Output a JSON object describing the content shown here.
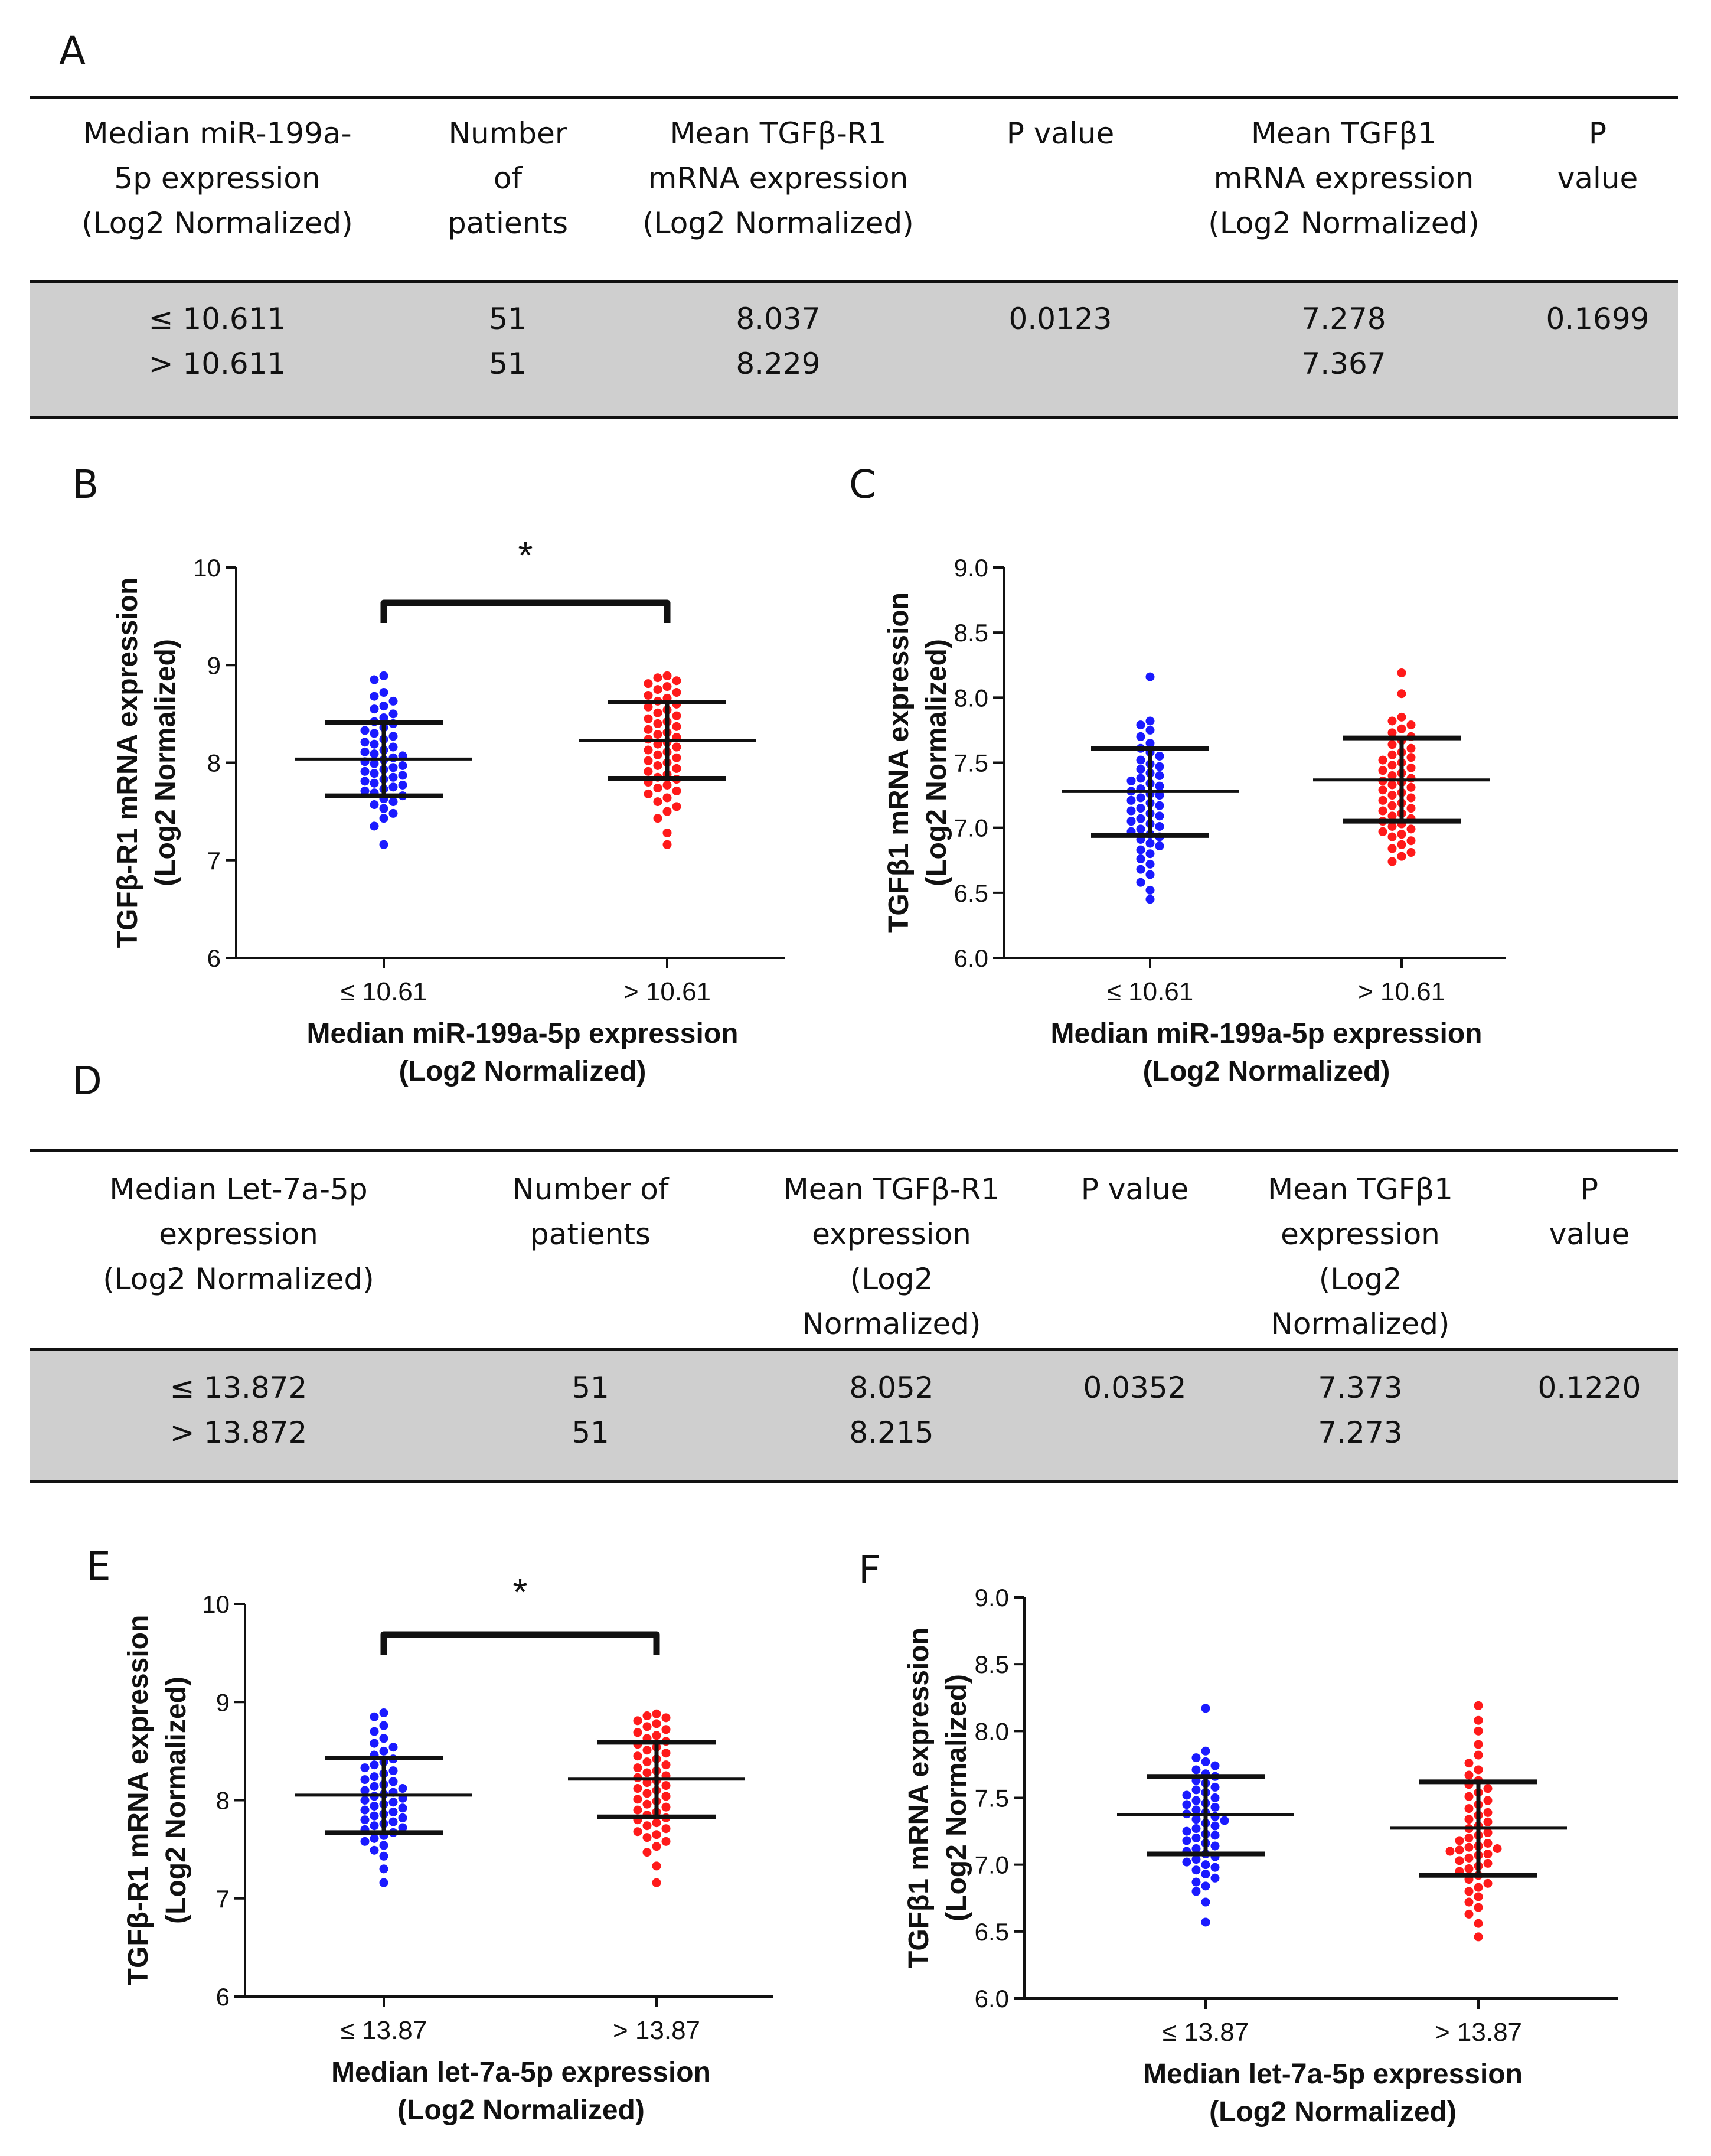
{
  "panel_labels": {
    "a": "A",
    "b": "B",
    "c": "C",
    "d": "D",
    "e": "E",
    "f": "F"
  },
  "table_a": {
    "headers": [
      "Median miR-199a-\n5p expression\n(Log2 Normalized)",
      "Number\nof\npatients",
      "Mean TGFβ-R1\nmRNA expression\n(Log2 Normalized)",
      "P value",
      "Mean TGFβ1\nmRNA expression\n(Log2 Normalized)",
      "P value"
    ],
    "rows": [
      [
        "≤ 10.611",
        "51",
        "8.037",
        "0.0123",
        "7.278",
        "0.1699"
      ],
      [
        "> 10.611",
        "51",
        "8.229",
        "",
        "7.367",
        ""
      ]
    ]
  },
  "table_d": {
    "headers": [
      "Median  Let-7a-5p\nexpression\n(Log2 Normalized)",
      "Number of\npatients",
      "Mean TGFβ-R1\nexpression\n(Log2\nNormalized)",
      "P value",
      "Mean TGFβ1\nexpression\n(Log2\nNormalized)",
      "P value"
    ],
    "rows": [
      [
        "≤ 13.872",
        "51",
        "8.052",
        "0.0352",
        "7.373",
        "0.1220"
      ],
      [
        "> 13.872",
        "51",
        "8.215",
        "",
        "7.273",
        ""
      ]
    ]
  },
  "colors": {
    "group1": "#1a1aff",
    "group2": "#ff1a1a",
    "axis": "#111111",
    "band": "#cfcfcf"
  },
  "chart_data": [
    {
      "id": "B",
      "type": "scatter",
      "ylabel": [
        "TGFβ-R1 mRNA expression",
        "(Log2 Normalized)"
      ],
      "xlabel": [
        "Median miR-199a-5p expression",
        "(Log2 Normalized)"
      ],
      "categories": [
        "≤ 10.61",
        "> 10.61"
      ],
      "ylim": [
        6,
        10
      ],
      "yticks": [
        6,
        7,
        8,
        9,
        10
      ],
      "ytick_labels": [
        "6",
        "7",
        "8",
        "9",
        "10"
      ],
      "series": [
        {
          "name": "≤ 10.61",
          "mean": 8.037,
          "sd_low": 7.66,
          "sd_high": 8.41,
          "values": [
            8.89,
            8.85,
            8.72,
            8.68,
            8.63,
            8.58,
            8.55,
            8.5,
            8.46,
            8.42,
            8.4,
            8.36,
            8.33,
            8.3,
            8.27,
            8.24,
            8.21,
            8.19,
            8.16,
            8.13,
            8.11,
            8.09,
            8.07,
            8.05,
            8.03,
            8.01,
            7.99,
            7.97,
            7.95,
            7.93,
            7.91,
            7.89,
            7.87,
            7.85,
            7.83,
            7.81,
            7.79,
            7.77,
            7.75,
            7.73,
            7.71,
            7.69,
            7.66,
            7.63,
            7.6,
            7.57,
            7.53,
            7.48,
            7.43,
            7.35,
            7.16
          ]
        },
        {
          "name": "> 10.61",
          "mean": 8.229,
          "sd_low": 7.84,
          "sd_high": 8.62,
          "values": [
            8.89,
            8.87,
            8.84,
            8.81,
            8.78,
            8.75,
            8.72,
            8.69,
            8.66,
            8.63,
            8.6,
            8.57,
            8.54,
            8.51,
            8.48,
            8.45,
            8.42,
            8.4,
            8.37,
            8.34,
            8.31,
            8.29,
            8.26,
            8.24,
            8.21,
            8.19,
            8.16,
            8.13,
            8.11,
            8.08,
            8.05,
            8.02,
            8.0,
            7.97,
            7.94,
            7.91,
            7.88,
            7.85,
            7.83,
            7.8,
            7.77,
            7.74,
            7.71,
            7.68,
            7.64,
            7.6,
            7.55,
            7.5,
            7.43,
            7.28,
            7.16
          ]
        }
      ],
      "annotation": "*"
    },
    {
      "id": "C",
      "type": "scatter",
      "ylabel": [
        "TGFβ1 mRNA expression",
        "(Log2 Normalized)"
      ],
      "xlabel": [
        "Median miR-199a-5p expression",
        "(Log2 Normalized)"
      ],
      "categories": [
        "≤ 10.61",
        "> 10.61"
      ],
      "ylim": [
        6.0,
        9.0
      ],
      "yticks": [
        6.0,
        6.5,
        7.0,
        7.5,
        8.0,
        8.5,
        9.0
      ],
      "ytick_labels": [
        "6.0",
        "6.5",
        "7.0",
        "7.5",
        "8.0",
        "8.5",
        "9.0"
      ],
      "series": [
        {
          "name": "≤ 10.61",
          "mean": 7.278,
          "sd_low": 6.94,
          "sd_high": 7.61,
          "values": [
            8.16,
            7.82,
            7.79,
            7.75,
            7.7,
            7.65,
            7.61,
            7.58,
            7.55,
            7.52,
            7.49,
            7.47,
            7.45,
            7.42,
            7.4,
            7.38,
            7.36,
            7.34,
            7.32,
            7.3,
            7.28,
            7.26,
            7.25,
            7.23,
            7.21,
            7.19,
            7.17,
            7.15,
            7.13,
            7.11,
            7.09,
            7.07,
            7.05,
            7.03,
            7.01,
            6.99,
            6.97,
            6.95,
            6.93,
            6.91,
            6.88,
            6.86,
            6.83,
            6.8,
            6.76,
            6.72,
            6.68,
            6.64,
            6.58,
            6.52,
            6.45
          ]
        },
        {
          "name": "> 10.61",
          "mean": 7.367,
          "sd_low": 7.05,
          "sd_high": 7.69,
          "values": [
            8.19,
            8.03,
            7.85,
            7.82,
            7.79,
            7.76,
            7.73,
            7.7,
            7.67,
            7.64,
            7.61,
            7.58,
            7.56,
            7.54,
            7.52,
            7.5,
            7.48,
            7.46,
            7.44,
            7.42,
            7.4,
            7.38,
            7.36,
            7.35,
            7.33,
            7.31,
            7.29,
            7.27,
            7.25,
            7.23,
            7.21,
            7.19,
            7.17,
            7.15,
            7.13,
            7.11,
            7.09,
            7.07,
            7.05,
            7.03,
            7.01,
            6.99,
            6.97,
            6.95,
            6.93,
            6.9,
            6.87,
            6.84,
            6.81,
            6.78,
            6.74
          ]
        }
      ]
    },
    {
      "id": "E",
      "type": "scatter",
      "ylabel": [
        "TGFβ-R1 mRNA expression",
        "(Log2 Normalized)"
      ],
      "xlabel": [
        "Median let-7a-5p expression",
        "(Log2 Normalized)"
      ],
      "categories": [
        "≤ 13.87",
        "> 13.87"
      ],
      "ylim": [
        6,
        10
      ],
      "yticks": [
        6,
        7,
        8,
        9,
        10
      ],
      "ytick_labels": [
        "6",
        "7",
        "8",
        "9",
        "10"
      ],
      "series": [
        {
          "name": "≤ 13.87",
          "mean": 8.052,
          "sd_low": 7.67,
          "sd_high": 8.43,
          "values": [
            8.89,
            8.85,
            8.76,
            8.7,
            8.63,
            8.58,
            8.54,
            8.5,
            8.46,
            8.42,
            8.39,
            8.36,
            8.33,
            8.3,
            8.27,
            8.24,
            8.21,
            8.19,
            8.16,
            8.14,
            8.12,
            8.1,
            8.08,
            8.06,
            8.04,
            8.02,
            8.0,
            7.98,
            7.96,
            7.94,
            7.92,
            7.9,
            7.88,
            7.86,
            7.84,
            7.82,
            7.8,
            7.78,
            7.76,
            7.74,
            7.72,
            7.7,
            7.67,
            7.64,
            7.61,
            7.58,
            7.54,
            7.49,
            7.43,
            7.3,
            7.16
          ]
        },
        {
          "name": "> 13.87",
          "mean": 8.215,
          "sd_low": 7.83,
          "sd_high": 8.59,
          "values": [
            8.88,
            8.86,
            8.84,
            8.81,
            8.78,
            8.75,
            8.72,
            8.69,
            8.66,
            8.63,
            8.6,
            8.57,
            8.54,
            8.51,
            8.48,
            8.45,
            8.42,
            8.39,
            8.36,
            8.33,
            8.3,
            8.28,
            8.25,
            8.23,
            8.2,
            8.18,
            8.15,
            8.12,
            8.1,
            8.07,
            8.04,
            8.01,
            7.99,
            7.96,
            7.93,
            7.9,
            7.88,
            7.85,
            7.82,
            7.8,
            7.77,
            7.74,
            7.71,
            7.68,
            7.65,
            7.62,
            7.58,
            7.53,
            7.47,
            7.33,
            7.16
          ]
        }
      ],
      "annotation": "*"
    },
    {
      "id": "F",
      "type": "scatter",
      "ylabel": [
        "TGFβ1 mRNA expression",
        "(Log2 Normalized)"
      ],
      "xlabel": [
        "Median let-7a-5p expression",
        "(Log2 Normalized)"
      ],
      "categories": [
        "≤ 13.87",
        "> 13.87"
      ],
      "ylim": [
        6.0,
        9.0
      ],
      "yticks": [
        6.0,
        6.5,
        7.0,
        7.5,
        8.0,
        8.5,
        9.0
      ],
      "ytick_labels": [
        "6.0",
        "6.5",
        "7.0",
        "7.5",
        "8.0",
        "8.5",
        "9.0"
      ],
      "series": [
        {
          "name": "≤ 13.87",
          "mean": 7.373,
          "sd_low": 7.08,
          "sd_high": 7.66,
          "values": [
            8.17,
            7.85,
            7.8,
            7.77,
            7.74,
            7.71,
            7.68,
            7.66,
            7.63,
            7.61,
            7.58,
            7.56,
            7.54,
            7.52,
            7.5,
            7.48,
            7.46,
            7.45,
            7.43,
            7.41,
            7.39,
            7.38,
            7.36,
            7.34,
            7.33,
            7.31,
            7.29,
            7.27,
            7.25,
            7.23,
            7.22,
            7.2,
            7.18,
            7.16,
            7.14,
            7.12,
            7.1,
            7.08,
            7.06,
            7.04,
            7.02,
            7.0,
            6.98,
            6.96,
            6.93,
            6.9,
            6.87,
            6.84,
            6.8,
            6.72,
            6.57
          ]
        },
        {
          "name": "> 13.87",
          "mean": 7.273,
          "sd_low": 6.92,
          "sd_high": 7.62,
          "values": [
            8.19,
            8.08,
            8.0,
            7.9,
            7.82,
            7.76,
            7.71,
            7.67,
            7.63,
            7.6,
            7.57,
            7.54,
            7.51,
            7.48,
            7.45,
            7.42,
            7.39,
            7.37,
            7.34,
            7.32,
            7.29,
            7.27,
            7.24,
            7.22,
            7.2,
            7.18,
            7.16,
            7.14,
            7.13,
            7.12,
            7.11,
            7.1,
            7.08,
            7.07,
            7.05,
            7.03,
            7.01,
            6.99,
            6.97,
            6.95,
            6.92,
            6.89,
            6.86,
            6.83,
            6.8,
            6.76,
            6.72,
            6.68,
            6.63,
            6.56,
            6.46
          ]
        }
      ]
    }
  ]
}
